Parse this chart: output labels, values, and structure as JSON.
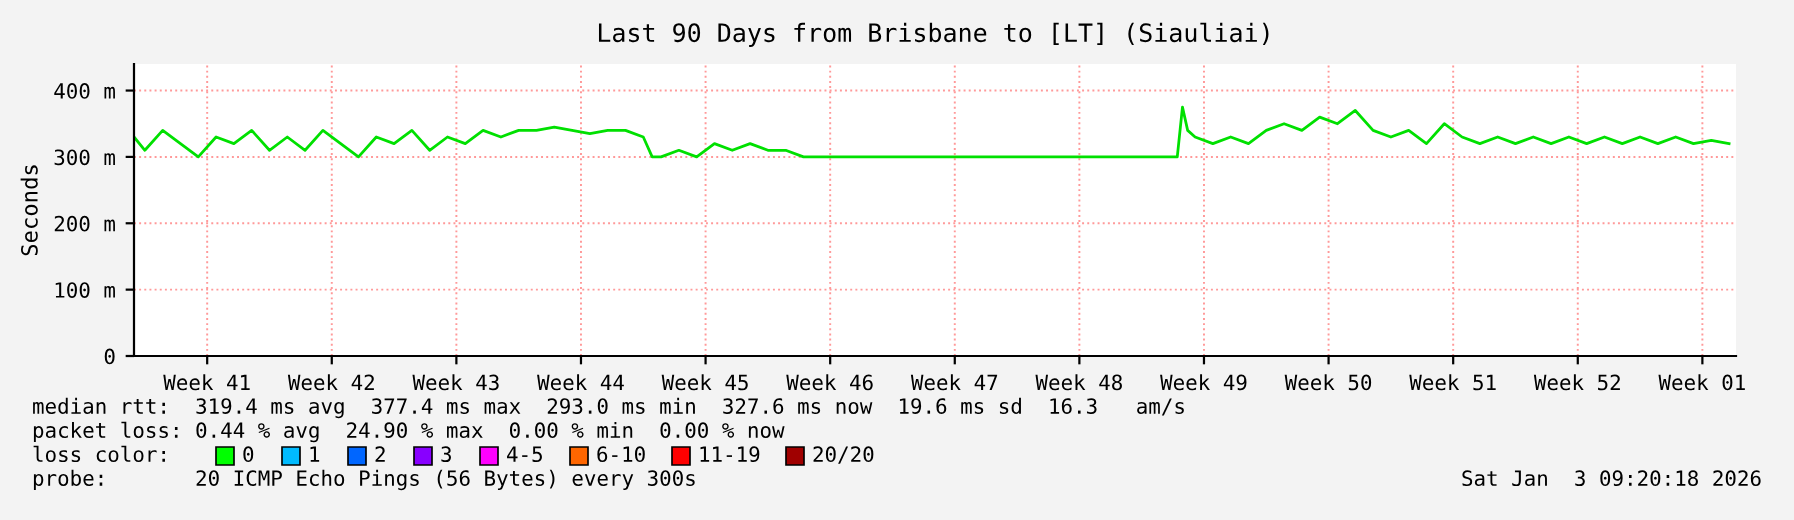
{
  "chart_data": {
    "type": "line",
    "title": "Last 90 Days from Brisbane to [LT] (Siauliai)",
    "ylabel": "Seconds",
    "x": [
      "2025-10-05T09:20",
      "2025-10-06",
      "2025-10-07",
      "2025-10-08",
      "2025-10-09",
      "2025-10-10",
      "2025-10-11",
      "2025-10-12",
      "2025-10-13",
      "2025-10-14",
      "2025-10-15",
      "2025-10-16",
      "2025-10-17",
      "2025-10-18",
      "2025-10-19",
      "2025-10-20",
      "2025-10-21",
      "2025-10-22",
      "2025-10-23",
      "2025-10-24",
      "2025-10-25",
      "2025-10-26",
      "2025-10-27",
      "2025-10-28",
      "2025-10-29",
      "2025-10-30",
      "2025-10-31",
      "2025-11-01",
      "2025-11-02",
      "2025-11-03",
      "2025-11-03T12:00",
      "2025-11-04",
      "2025-11-05",
      "2025-11-06",
      "2025-11-07",
      "2025-11-08",
      "2025-11-09",
      "2025-11-10",
      "2025-11-11",
      "2025-11-12",
      "2025-11-14",
      "2025-11-16",
      "2025-11-18",
      "2025-11-20",
      "2025-11-22",
      "2025-11-24",
      "2025-11-26",
      "2025-11-28",
      "2025-11-30",
      "2025-12-02",
      "2025-12-03",
      "2025-12-03T07:00",
      "2025-12-03T14:00",
      "2025-12-04",
      "2025-12-05",
      "2025-12-06",
      "2025-12-07",
      "2025-12-08",
      "2025-12-09",
      "2025-12-10",
      "2025-12-11",
      "2025-12-12",
      "2025-12-13",
      "2025-12-14",
      "2025-12-15",
      "2025-12-16",
      "2025-12-17",
      "2025-12-18",
      "2025-12-19",
      "2025-12-20",
      "2025-12-21",
      "2025-12-22",
      "2025-12-23",
      "2025-12-24",
      "2025-12-25",
      "2025-12-26",
      "2025-12-27",
      "2025-12-28",
      "2025-12-29",
      "2025-12-30",
      "2025-12-31",
      "2026-01-01",
      "2026-01-02",
      "2026-01-03"
    ],
    "series": [
      {
        "color": "#00e000",
        "values": [
          330,
          310,
          340,
          320,
          300,
          330,
          320,
          340,
          310,
          330,
          310,
          340,
          320,
          300,
          330,
          320,
          340,
          310,
          330,
          320,
          340,
          330,
          340,
          340,
          345,
          340,
          335,
          340,
          340,
          330,
          300,
          300,
          310,
          300,
          320,
          310,
          320,
          310,
          310,
          300,
          300,
          300,
          300,
          300,
          300,
          300,
          300,
          300,
          300,
          300,
          300,
          375,
          340,
          330,
          320,
          330,
          320,
          340,
          350,
          340,
          360,
          350,
          370,
          340,
          330,
          340,
          320,
          350,
          330,
          320,
          330,
          320,
          330,
          320,
          330,
          320,
          330,
          320,
          330,
          320,
          330,
          320,
          325,
          320
        ]
      }
    ],
    "xlim": [
      "2025-10-05T09:20",
      "2026-01-03T09:20"
    ],
    "xticks": [
      {
        "value": "2025-10-09T12:00",
        "label": "Week 41"
      },
      {
        "value": "2025-10-16T12:00",
        "label": "Week 42"
      },
      {
        "value": "2025-10-23T12:00",
        "label": "Week 43"
      },
      {
        "value": "2025-10-30T12:00",
        "label": "Week 44"
      },
      {
        "value": "2025-11-06T12:00",
        "label": "Week 45"
      },
      {
        "value": "2025-11-13T12:00",
        "label": "Week 46"
      },
      {
        "value": "2025-11-20T12:00",
        "label": "Week 47"
      },
      {
        "value": "2025-11-27T12:00",
        "label": "Week 48"
      },
      {
        "value": "2025-12-04T12:00",
        "label": "Week 49"
      },
      {
        "value": "2025-12-11T12:00",
        "label": "Week 50"
      },
      {
        "value": "2025-12-18T12:00",
        "label": "Week 51"
      },
      {
        "value": "2025-12-25T12:00",
        "label": "Week 52"
      },
      {
        "value": "2026-01-01T12:00",
        "label": "Week 01"
      }
    ],
    "ylim": [
      0,
      440
    ],
    "yticks": [
      0,
      {
        "value": 100,
        "label": "100 m"
      },
      {
        "value": 200,
        "label": "200 m"
      },
      {
        "value": 300,
        "label": "300 m"
      },
      {
        "value": 400,
        "label": "400 m"
      }
    ],
    "grid": true,
    "legend": false,
    "annotations": [
      "median rtt:  319.4 ms avg  377.4 ms max  293.0 ms min  327.6 ms now  19.6 ms sd  16.3   am/s",
      "packet loss: 0.44 % avg  24.90 % max  0.00 % min  0.00 % now",
      "loss color:",
      "0",
      "1",
      "2",
      "3",
      "4-5",
      "6-10",
      "11-19",
      "20/20",
      "probe:       20 ICMP Echo Pings (56 Bytes) every 300s",
      "Sat Jan  3 09:20:18 2026"
    ]
  }
}
